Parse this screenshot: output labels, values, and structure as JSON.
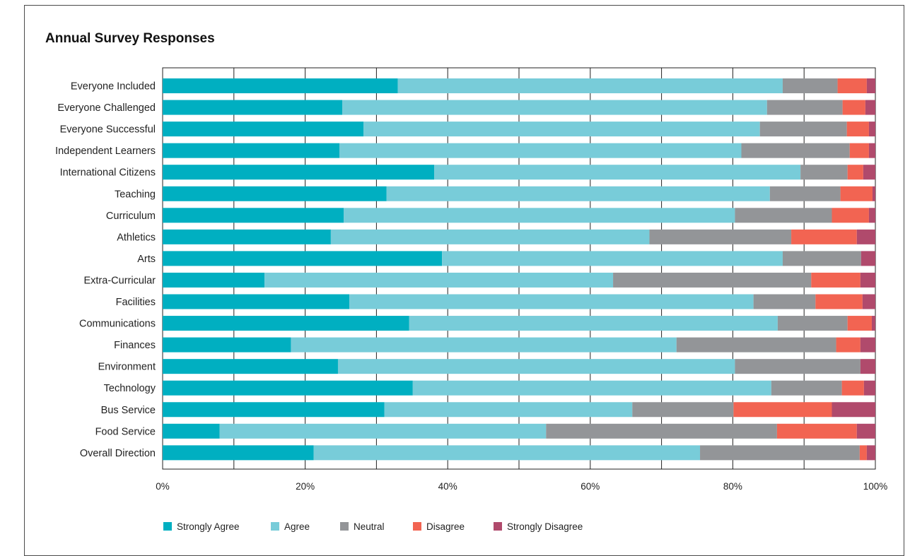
{
  "chart_data": {
    "type": "bar",
    "orientation": "horizontal",
    "stacked": true,
    "title": "Annual Survey Responses",
    "xlabel": "",
    "ylabel": "",
    "xlim": [
      0,
      100
    ],
    "x_ticks": [
      "0%",
      "20%",
      "40%",
      "60%",
      "80%",
      "100%"
    ],
    "grid": true,
    "legend_position": "bottom-left",
    "categories": [
      "Everyone Included",
      "Everyone Challenged",
      "Everyone Successful",
      "Independent Learners",
      "International Citizens",
      "Teaching",
      "Curriculum",
      "Athletics",
      "Arts",
      "Extra-Curricular",
      "Facilities",
      "Communications",
      "Finances",
      "Environment",
      "Technology",
      "Bus Service",
      "Food Service",
      "Overall Direction"
    ],
    "series": [
      {
        "name": "Strongly Agree",
        "color": "#00afc1",
        "values": [
          33.0,
          25.2,
          28.2,
          24.8,
          38.1,
          31.4,
          25.4,
          23.6,
          39.2,
          14.3,
          26.2,
          34.6,
          18.0,
          24.6,
          35.1,
          31.1,
          8.0,
          21.2
        ]
      },
      {
        "name": "Agree",
        "color": "#78ccd9",
        "values": [
          54.0,
          59.6,
          55.6,
          56.4,
          51.4,
          53.8,
          54.9,
          44.7,
          47.8,
          48.9,
          56.7,
          51.7,
          54.1,
          55.7,
          50.3,
          34.8,
          45.8,
          54.2
        ]
      },
      {
        "name": "Neutral",
        "color": "#939598",
        "values": [
          7.7,
          10.6,
          12.2,
          15.2,
          6.6,
          9.9,
          13.6,
          19.9,
          11.0,
          27.8,
          8.7,
          9.8,
          22.4,
          17.6,
          9.9,
          14.2,
          32.4,
          22.4
        ]
      },
      {
        "name": "Disagree",
        "color": "#f26452",
        "values": [
          4.1,
          3.2,
          3.1,
          2.7,
          2.2,
          4.5,
          5.2,
          9.2,
          0.0,
          6.9,
          6.6,
          3.4,
          3.4,
          0.0,
          3.1,
          13.8,
          11.2,
          1.0
        ]
      },
      {
        "name": "Strongly Disagree",
        "color": "#b04a6c",
        "values": [
          1.2,
          1.4,
          0.9,
          0.9,
          1.7,
          0.4,
          0.9,
          2.6,
          2.0,
          2.1,
          1.8,
          0.5,
          2.1,
          2.1,
          1.6,
          6.1,
          2.6,
          1.2
        ]
      }
    ]
  }
}
